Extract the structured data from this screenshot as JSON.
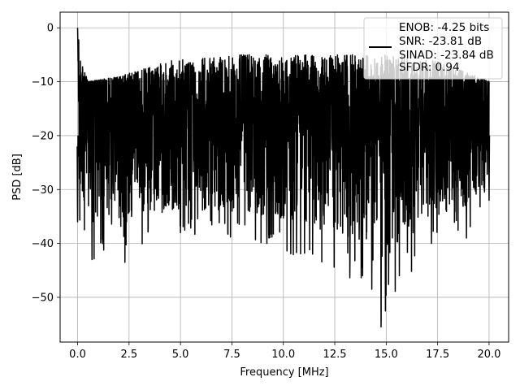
{
  "chart_data": {
    "type": "line",
    "title": "",
    "xlabel": "Frequency [MHz]",
    "ylabel": "PSD [dB]",
    "xlim": [
      -0.85,
      20.95
    ],
    "ylim": [
      -58.3,
      2.9
    ],
    "xticks": [
      0.0,
      2.5,
      5.0,
      7.5,
      10.0,
      12.5,
      15.0,
      17.5,
      20.0
    ],
    "xtick_labels": [
      "0.0",
      "2.5",
      "5.0",
      "7.5",
      "10.0",
      "12.5",
      "15.0",
      "17.5",
      "20.0"
    ],
    "yticks": [
      0,
      -10,
      -20,
      -30,
      -40,
      -50
    ],
    "ytick_labels": [
      "0",
      "−10",
      "−20",
      "−30",
      "−40",
      "−50"
    ],
    "grid": true,
    "legend_placement": "top-right",
    "series": [
      {
        "color": "#000000",
        "style": "dense noise spectrum",
        "x_range": [
          0.0,
          20.0
        ],
        "peak": [
          0.0,
          0.0
        ],
        "envelope": {
          "upper_approx": [
            [
              0.0,
              0.0
            ],
            [
              0.1,
              -5
            ],
            [
              0.5,
              -10
            ],
            [
              2.0,
              -9
            ],
            [
              4.5,
              -6
            ],
            [
              7.5,
              -5
            ],
            [
              10.0,
              -5
            ],
            [
              12.5,
              -5
            ],
            [
              15.0,
              -5
            ],
            [
              17.5,
              -6
            ],
            [
              20.0,
              -10
            ]
          ],
          "lower_approx": [
            [
              0.0,
              -36
            ],
            [
              0.7,
              -43
            ],
            [
              2.3,
              -43.5
            ],
            [
              5.0,
              -38
            ],
            [
              9.2,
              -40
            ],
            [
              14.3,
              -48.5
            ],
            [
              14.75,
              -55.5
            ],
            [
              17.2,
              -40
            ],
            [
              18.9,
              -39
            ],
            [
              20.0,
              -32
            ]
          ]
        },
        "typical_band": [
          -27,
          -10
        ]
      }
    ],
    "legend": {
      "line_color": "#000000",
      "entries": [
        "ENOB: -4.25 bits",
        "SNR: -23.81 dB",
        "SINAD: -23.84 dB",
        "SFDR: 0.94"
      ]
    }
  }
}
